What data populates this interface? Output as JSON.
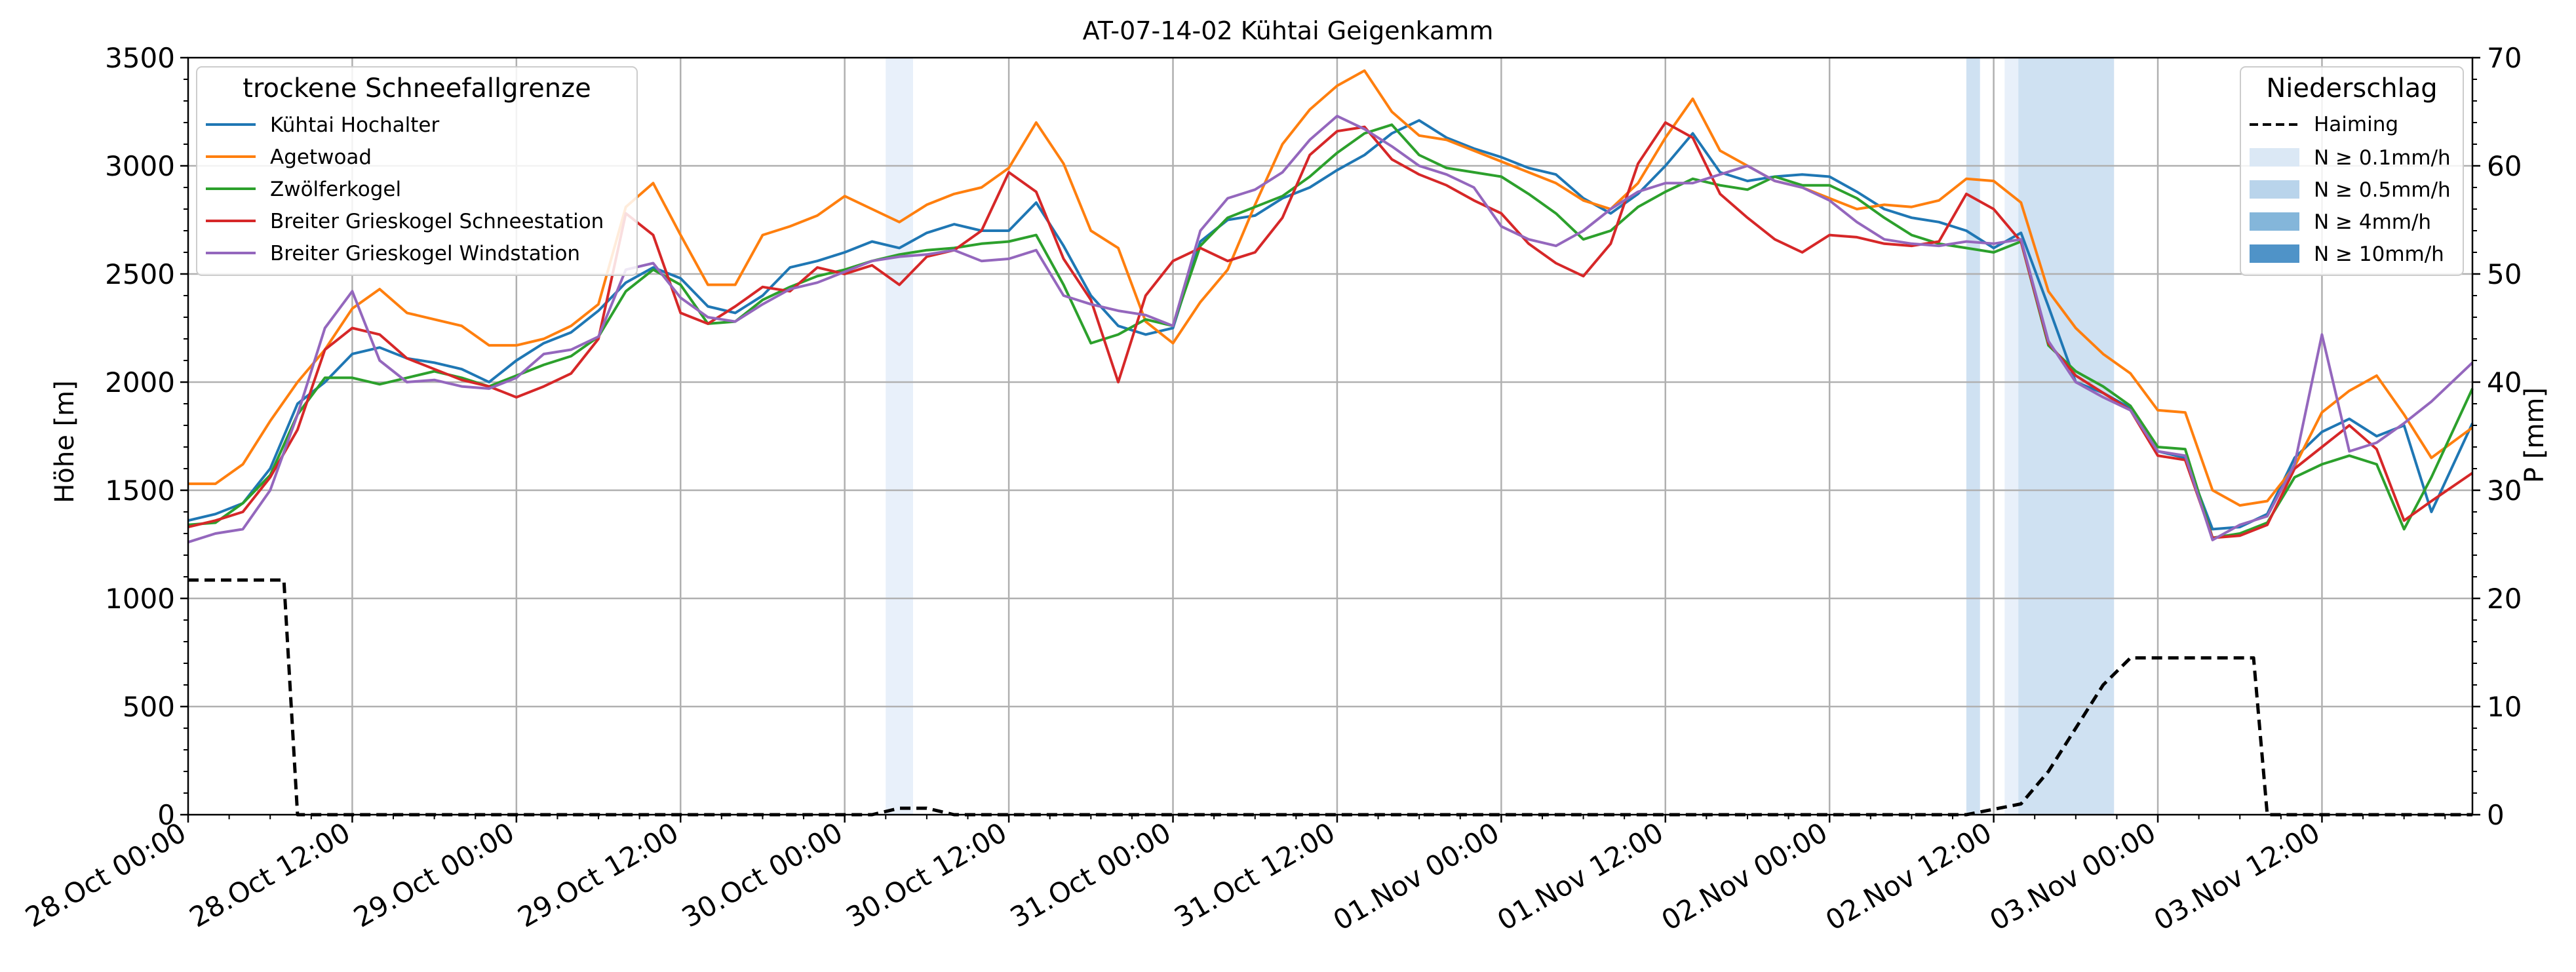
{
  "chart_data": {
    "type": "line",
    "title": "AT-07-14-02 Kühtai Geigenkamm",
    "ylabel": "Höhe [m]",
    "ylabel_right": "P [mm]",
    "xlabel": "",
    "ylim": [
      0,
      3500
    ],
    "ylim_right": [
      0,
      70
    ],
    "x_unit": "hours since 28.Oct 00:00",
    "x_range": [
      0,
      167
    ],
    "x_ticks": [
      {
        "x": 0,
        "label": "28.Oct 00:00"
      },
      {
        "x": 12,
        "label": "28.Oct 12:00"
      },
      {
        "x": 24,
        "label": "29.Oct 00:00"
      },
      {
        "x": 36,
        "label": "29.Oct 12:00"
      },
      {
        "x": 48,
        "label": "30.Oct 00:00"
      },
      {
        "x": 60,
        "label": "30.Oct 12:00"
      },
      {
        "x": 72,
        "label": "31.Oct 00:00"
      },
      {
        "x": 84,
        "label": "31.Oct 12:00"
      },
      {
        "x": 96,
        "label": "01.Nov 00:00"
      },
      {
        "x": 108,
        "label": "01.Nov 12:00"
      },
      {
        "x": 120,
        "label": "02.Nov 00:00"
      },
      {
        "x": 132,
        "label": "02.Nov 12:00"
      },
      {
        "x": 144,
        "label": "03.Nov 00:00"
      },
      {
        "x": 156,
        "label": "03.Nov 12:00"
      }
    ],
    "y_ticks": [
      0,
      500,
      1000,
      1500,
      2000,
      2500,
      3000,
      3500
    ],
    "y_ticks_right": [
      0,
      10,
      20,
      30,
      40,
      50,
      60,
      70
    ],
    "grid": true,
    "legend_left": {
      "title": "trockene Schneefallgrenze",
      "placement": "top-left"
    },
    "legend_right": {
      "title": "Niederschlag",
      "placement": "top-right",
      "line_label": "Haiming",
      "bands": [
        {
          "label": "N ≥ 0.1mm/h",
          "color": "#dbe8f5"
        },
        {
          "label": "N ≥ 0.5mm/h",
          "color": "#b9d4eb"
        },
        {
          "label": "N ≥ 4mm/h",
          "color": "#84b6da"
        },
        {
          "label": "N ≥ 10mm/h",
          "color": "#4f93c8"
        }
      ]
    },
    "precip_bands": [
      {
        "x0": 51.0,
        "x1": 53.0,
        "color": "#e8f0fa"
      },
      {
        "x0": 130.0,
        "x1": 131.0,
        "color": "#cfe1f2"
      },
      {
        "x0": 132.8,
        "x1": 133.8,
        "color": "#e8f0fa"
      },
      {
        "x0": 133.8,
        "x1": 140.8,
        "color": "#cfe1f2"
      }
    ],
    "series": [
      {
        "name": "Kühtai Hochalter",
        "color": "#1f77b4",
        "x": [
          0,
          2,
          4,
          6,
          8,
          10,
          12,
          14,
          16,
          18,
          20,
          22,
          24,
          26,
          28,
          30,
          32,
          34,
          36,
          38,
          40,
          42,
          44,
          46,
          48,
          50,
          52,
          54,
          56,
          58,
          60,
          62,
          64,
          66,
          68,
          70,
          72,
          74,
          76,
          78,
          80,
          82,
          84,
          86,
          88,
          90,
          92,
          94,
          96,
          98,
          100,
          102,
          104,
          106,
          108,
          110,
          112,
          114,
          116,
          118,
          120,
          122,
          124,
          126,
          128,
          130,
          132,
          134,
          136,
          138,
          140,
          142,
          144,
          146,
          148,
          150,
          152,
          154,
          156,
          158,
          160,
          162,
          164,
          167
        ],
        "y": [
          1360,
          1390,
          1440,
          1600,
          1900,
          2000,
          2130,
          2160,
          2110,
          2090,
          2060,
          2000,
          2100,
          2180,
          2230,
          2330,
          2460,
          2530,
          2480,
          2350,
          2320,
          2400,
          2530,
          2560,
          2600,
          2650,
          2620,
          2690,
          2730,
          2700,
          2700,
          2830,
          2630,
          2400,
          2260,
          2220,
          2250,
          2650,
          2750,
          2770,
          2850,
          2900,
          2980,
          3050,
          3150,
          3210,
          3130,
          3080,
          3040,
          2990,
          2960,
          2850,
          2780,
          2870,
          3000,
          3150,
          2970,
          2930,
          2950,
          2960,
          2950,
          2880,
          2800,
          2760,
          2740,
          2700,
          2620,
          2690,
          2350,
          2000,
          1950,
          1880,
          1680,
          1650,
          1320,
          1330,
          1390,
          1650,
          1770,
          1830,
          1750,
          1800,
          1400,
          1810
        ]
      },
      {
        "name": "Agetwoad",
        "color": "#ff7f0e",
        "x": [
          0,
          2,
          4,
          6,
          8,
          10,
          12,
          14,
          16,
          18,
          20,
          22,
          24,
          26,
          28,
          30,
          32,
          34,
          36,
          38,
          40,
          42,
          44,
          46,
          48,
          50,
          52,
          54,
          56,
          58,
          60,
          62,
          64,
          66,
          68,
          70,
          72,
          74,
          76,
          78,
          80,
          82,
          84,
          86,
          88,
          90,
          92,
          94,
          96,
          98,
          100,
          102,
          104,
          106,
          108,
          110,
          112,
          114,
          116,
          118,
          120,
          122,
          124,
          126,
          128,
          130,
          132,
          134,
          136,
          138,
          140,
          142,
          144,
          146,
          148,
          150,
          152,
          154,
          156,
          158,
          160,
          162,
          164,
          167
        ],
        "y": [
          1530,
          1530,
          1620,
          1820,
          2000,
          2150,
          2340,
          2430,
          2320,
          2290,
          2260,
          2170,
          2170,
          2200,
          2260,
          2360,
          2810,
          2920,
          2680,
          2450,
          2450,
          2680,
          2720,
          2770,
          2860,
          2800,
          2740,
          2820,
          2870,
          2900,
          2990,
          3200,
          3010,
          2700,
          2620,
          2280,
          2180,
          2370,
          2520,
          2820,
          3100,
          3260,
          3370,
          3440,
          3250,
          3140,
          3120,
          3070,
          3020,
          2970,
          2920,
          2840,
          2800,
          2920,
          3130,
          3310,
          3070,
          3000,
          2930,
          2900,
          2850,
          2800,
          2820,
          2810,
          2840,
          2940,
          2930,
          2830,
          2420,
          2250,
          2130,
          2040,
          1870,
          1860,
          1500,
          1430,
          1450,
          1610,
          1860,
          1960,
          2030,
          1850,
          1650,
          1790
        ]
      },
      {
        "name": "Zwölferkogel",
        "color": "#2ca02c",
        "x": [
          0,
          2,
          4,
          6,
          8,
          10,
          12,
          14,
          16,
          18,
          20,
          22,
          24,
          26,
          28,
          30,
          32,
          34,
          36,
          38,
          40,
          42,
          44,
          46,
          48,
          50,
          52,
          54,
          56,
          58,
          60,
          62,
          64,
          66,
          68,
          70,
          72,
          74,
          76,
          78,
          80,
          82,
          84,
          86,
          88,
          90,
          92,
          94,
          96,
          98,
          100,
          102,
          104,
          106,
          108,
          110,
          112,
          114,
          116,
          118,
          120,
          122,
          124,
          126,
          128,
          130,
          132,
          134,
          136,
          138,
          140,
          142,
          144,
          146,
          148,
          150,
          152,
          154,
          156,
          158,
          160,
          162,
          164,
          167
        ],
        "y": [
          1340,
          1350,
          1440,
          1570,
          1850,
          2020,
          2020,
          1990,
          2020,
          2050,
          2020,
          1980,
          2030,
          2080,
          2120,
          2210,
          2420,
          2520,
          2450,
          2270,
          2280,
          2380,
          2440,
          2490,
          2520,
          2560,
          2590,
          2610,
          2620,
          2640,
          2650,
          2680,
          2450,
          2180,
          2220,
          2290,
          2260,
          2630,
          2760,
          2810,
          2860,
          2950,
          3060,
          3150,
          3190,
          3050,
          2990,
          2970,
          2950,
          2870,
          2780,
          2660,
          2700,
          2810,
          2880,
          2940,
          2910,
          2890,
          2950,
          2910,
          2910,
          2850,
          2760,
          2680,
          2640,
          2620,
          2600,
          2650,
          2170,
          2050,
          1980,
          1890,
          1700,
          1690,
          1280,
          1300,
          1350,
          1560,
          1620,
          1660,
          1620,
          1320,
          1560,
          1970
        ]
      },
      {
        "name": "Breiter Grieskogel Schneestation",
        "color": "#d62728",
        "x": [
          0,
          2,
          4,
          6,
          8,
          10,
          12,
          14,
          16,
          18,
          20,
          22,
          24,
          26,
          28,
          30,
          32,
          34,
          36,
          38,
          40,
          42,
          44,
          46,
          48,
          50,
          52,
          54,
          56,
          58,
          60,
          62,
          64,
          66,
          68,
          70,
          72,
          74,
          76,
          78,
          80,
          82,
          84,
          86,
          88,
          90,
          92,
          94,
          96,
          98,
          100,
          102,
          104,
          106,
          108,
          110,
          112,
          114,
          116,
          118,
          120,
          122,
          124,
          126,
          128,
          130,
          132,
          134,
          136,
          138,
          140,
          142,
          144,
          146,
          148,
          150,
          152,
          154,
          156,
          158,
          160,
          162,
          164,
          167
        ],
        "y": [
          1330,
          1360,
          1400,
          1560,
          1780,
          2150,
          2250,
          2220,
          2110,
          2060,
          2010,
          1980,
          1930,
          1980,
          2040,
          2200,
          2780,
          2680,
          2320,
          2270,
          2350,
          2440,
          2420,
          2530,
          2500,
          2540,
          2450,
          2580,
          2610,
          2700,
          2970,
          2880,
          2570,
          2380,
          2000,
          2400,
          2560,
          2620,
          2560,
          2600,
          2760,
          3050,
          3160,
          3180,
          3030,
          2960,
          2910,
          2840,
          2780,
          2640,
          2550,
          2490,
          2640,
          3010,
          3200,
          3130,
          2870,
          2760,
          2660,
          2600,
          2680,
          2670,
          2640,
          2630,
          2650,
          2870,
          2800,
          2650,
          2180,
          2030,
          1950,
          1870,
          1660,
          1640,
          1280,
          1290,
          1340,
          1600,
          1700,
          1800,
          1690,
          1360,
          1450,
          1580
        ]
      },
      {
        "name": "Breiter Grieskogel Windstation",
        "color": "#9467bd",
        "x": [
          0,
          2,
          4,
          6,
          8,
          10,
          12,
          14,
          16,
          18,
          20,
          22,
          24,
          26,
          28,
          30,
          32,
          34,
          36,
          38,
          40,
          42,
          44,
          46,
          48,
          50,
          52,
          54,
          56,
          58,
          60,
          62,
          64,
          66,
          68,
          70,
          72,
          74,
          76,
          78,
          80,
          82,
          84,
          86,
          88,
          90,
          92,
          94,
          96,
          98,
          100,
          102,
          104,
          106,
          108,
          110,
          112,
          114,
          116,
          118,
          120,
          122,
          124,
          126,
          128,
          130,
          132,
          134,
          136,
          138,
          140,
          142,
          144,
          146,
          148,
          150,
          152,
          154,
          156,
          158,
          160,
          162,
          164,
          167
        ],
        "y": [
          1260,
          1300,
          1320,
          1500,
          1850,
          2250,
          2420,
          2100,
          2000,
          2010,
          1980,
          1970,
          2020,
          2130,
          2150,
          2210,
          2520,
          2550,
          2390,
          2300,
          2280,
          2360,
          2430,
          2460,
          2510,
          2560,
          2580,
          2590,
          2610,
          2560,
          2570,
          2610,
          2400,
          2360,
          2330,
          2310,
          2260,
          2700,
          2850,
          2890,
          2970,
          3120,
          3230,
          3170,
          3090,
          3000,
          2960,
          2900,
          2720,
          2660,
          2630,
          2700,
          2800,
          2880,
          2920,
          2920,
          2960,
          3000,
          2930,
          2900,
          2840,
          2740,
          2660,
          2640,
          2630,
          2650,
          2640,
          2660,
          2190,
          2000,
          1930,
          1870,
          1680,
          1660,
          1270,
          1340,
          1380,
          1620,
          2220,
          1680,
          1720,
          1810,
          1910,
          2090
        ]
      },
      {
        "name": "Haiming",
        "axis": "right",
        "color": "#000000",
        "dash": true,
        "x": [
          0,
          7,
          8,
          50,
          52,
          54,
          56,
          130,
          134,
          136,
          138,
          140,
          142,
          144,
          151,
          152,
          167
        ],
        "y": [
          21.7,
          21.7,
          0,
          0,
          0.6,
          0.6,
          0,
          0,
          1,
          4,
          8,
          12,
          14.5,
          14.5,
          14.5,
          0,
          0
        ]
      }
    ]
  }
}
